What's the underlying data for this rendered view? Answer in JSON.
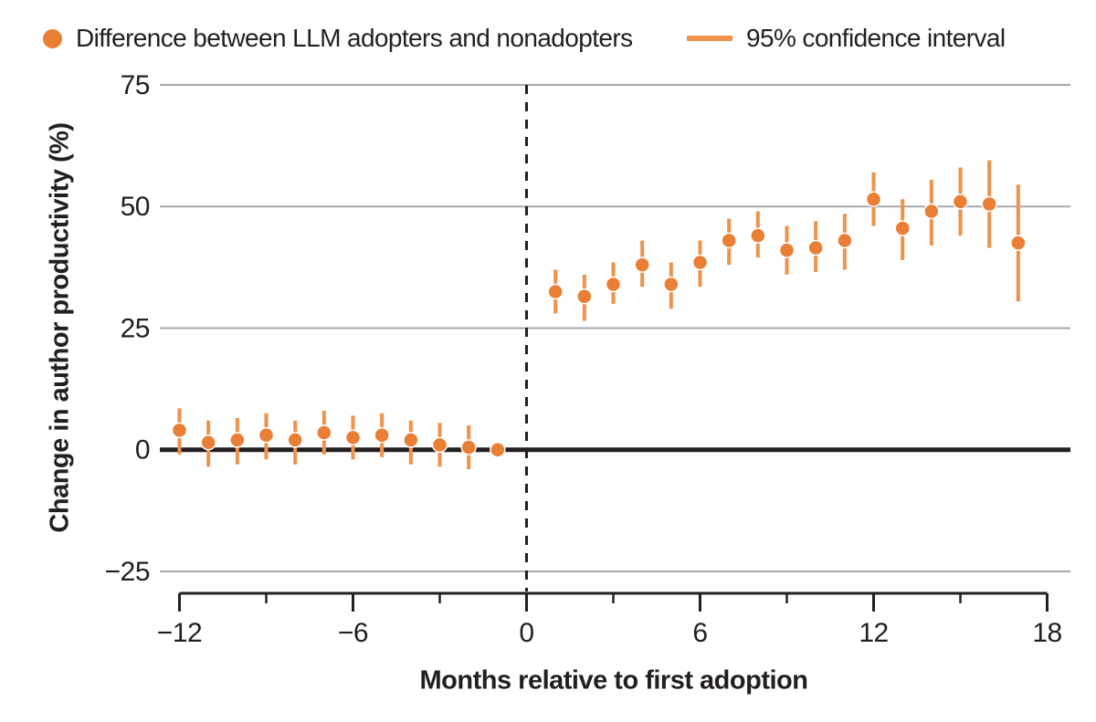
{
  "legend": {
    "series_label": "Difference between LLM adopters and nonadopters",
    "ci_label": "95% confidence interval"
  },
  "colors": {
    "point": "#E97E35",
    "ci_bar": "#F0914C",
    "text": "#231F20",
    "grid": "#A6A8AB",
    "zero_line": "#231F20",
    "axis": "#231F20",
    "reference_dash": "#231F20",
    "background": "#FFFFFF"
  },
  "chart_data": {
    "type": "scatter",
    "title": "",
    "xlabel": "Months relative to first adoption",
    "ylabel": "Change in author productivity (%)",
    "xlim": [
      -12.7,
      18.8
    ],
    "ylim": [
      -30,
      75
    ],
    "x_major_ticks": [
      -12,
      -6,
      0,
      6,
      12,
      18
    ],
    "x_minor_ticks": [
      -9,
      -3,
      3,
      9,
      15
    ],
    "y_ticks": [
      75,
      50,
      25,
      0,
      -25
    ],
    "grid": "horizontal",
    "zero_line_bold": true,
    "reference_line_x": 0,
    "legend_position": "top",
    "series": [
      {
        "name": "Difference between LLM adopters and nonadopters",
        "points": [
          {
            "month": -12,
            "value": 4,
            "ci_low": -1,
            "ci_high": 8.5
          },
          {
            "month": -11,
            "value": 1.5,
            "ci_low": -3.5,
            "ci_high": 6
          },
          {
            "month": -10,
            "value": 2,
            "ci_low": -3,
            "ci_high": 6.5
          },
          {
            "month": -9,
            "value": 3,
            "ci_low": -2,
            "ci_high": 7.5
          },
          {
            "month": -8,
            "value": 2,
            "ci_low": -3,
            "ci_high": 6
          },
          {
            "month": -7,
            "value": 3.5,
            "ci_low": -1,
            "ci_high": 8
          },
          {
            "month": -6,
            "value": 2.5,
            "ci_low": -2,
            "ci_high": 7
          },
          {
            "month": -5,
            "value": 3,
            "ci_low": -1.5,
            "ci_high": 7.5
          },
          {
            "month": -4,
            "value": 2,
            "ci_low": -3,
            "ci_high": 6
          },
          {
            "month": -3,
            "value": 1,
            "ci_low": -3.5,
            "ci_high": 5.5
          },
          {
            "month": -2,
            "value": 0.5,
            "ci_low": -4,
            "ci_high": 5
          },
          {
            "month": -1,
            "value": 0,
            "ci_low": null,
            "ci_high": null
          },
          {
            "month": 1,
            "value": 32.5,
            "ci_low": 28,
            "ci_high": 37
          },
          {
            "month": 2,
            "value": 31.5,
            "ci_low": 26.5,
            "ci_high": 36
          },
          {
            "month": 3,
            "value": 34,
            "ci_low": 30,
            "ci_high": 38.5
          },
          {
            "month": 4,
            "value": 38,
            "ci_low": 33.5,
            "ci_high": 43
          },
          {
            "month": 5,
            "value": 34,
            "ci_low": 29,
            "ci_high": 38.5
          },
          {
            "month": 6,
            "value": 38.5,
            "ci_low": 33.5,
            "ci_high": 43
          },
          {
            "month": 7,
            "value": 43,
            "ci_low": 38,
            "ci_high": 47.5
          },
          {
            "month": 8,
            "value": 44,
            "ci_low": 39.5,
            "ci_high": 49
          },
          {
            "month": 9,
            "value": 41,
            "ci_low": 36,
            "ci_high": 46
          },
          {
            "month": 10,
            "value": 41.5,
            "ci_low": 36.5,
            "ci_high": 47
          },
          {
            "month": 11,
            "value": 43,
            "ci_low": 37,
            "ci_high": 48.5
          },
          {
            "month": 12,
            "value": 51.5,
            "ci_low": 46,
            "ci_high": 57
          },
          {
            "month": 13,
            "value": 45.5,
            "ci_low": 39,
            "ci_high": 51.5
          },
          {
            "month": 14,
            "value": 49,
            "ci_low": 42,
            "ci_high": 55.5
          },
          {
            "month": 15,
            "value": 51,
            "ci_low": 44,
            "ci_high": 58
          },
          {
            "month": 16,
            "value": 50.5,
            "ci_low": 41.5,
            "ci_high": 59.5
          },
          {
            "month": 17,
            "value": 42.5,
            "ci_low": 30.5,
            "ci_high": 54.5
          }
        ]
      }
    ]
  }
}
